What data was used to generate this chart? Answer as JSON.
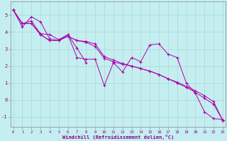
{
  "xlabel": "Windchill (Refroidissement éolien,°C)",
  "background_color": "#c5eef0",
  "grid_color": "#aad8da",
  "line_color": "#aa00aa",
  "spine_color": "#888899",
  "text_color": "#880088",
  "ylim": [
    -1.6,
    5.8
  ],
  "xlim": [
    0,
    23
  ],
  "y_ticks": [
    -1,
    0,
    1,
    2,
    3,
    4,
    5
  ],
  "x_ticks": [
    0,
    1,
    2,
    3,
    4,
    5,
    6,
    7,
    8,
    9,
    10,
    11,
    12,
    13,
    14,
    15,
    16,
    17,
    18,
    19,
    20,
    21,
    22,
    23
  ],
  "series": [
    {
      "x": [
        0,
        1,
        2,
        3,
        4,
        5,
        6,
        7,
        8,
        9,
        10,
        11,
        12,
        13,
        14,
        15,
        16,
        17,
        18,
        19,
        20,
        21,
        22,
        23
      ],
      "y": [
        5.3,
        4.3,
        4.9,
        4.6,
        3.6,
        3.5,
        3.85,
        2.5,
        2.4,
        2.4,
        0.85,
        2.2,
        1.65,
        2.5,
        2.25,
        3.25,
        3.3,
        2.7,
        2.5,
        1.0,
        0.4,
        -0.7,
        -1.1,
        -1.15
      ]
    },
    {
      "x": [
        0,
        1,
        2,
        3,
        4,
        5,
        6,
        7,
        8
      ],
      "y": [
        5.3,
        4.5,
        4.65,
        3.9,
        3.85,
        3.55,
        3.85,
        3.05,
        2.2
      ]
    },
    {
      "x": [
        0,
        1,
        2,
        3,
        4,
        5,
        6,
        7,
        8,
        9,
        10,
        11,
        12,
        13,
        14,
        15,
        16,
        17,
        18,
        19,
        20,
        21,
        22,
        23
      ],
      "y": [
        5.3,
        4.5,
        4.5,
        3.85,
        3.5,
        3.5,
        3.75,
        3.5,
        3.4,
        3.15,
        2.45,
        2.25,
        2.1,
        2.0,
        1.85,
        1.7,
        1.5,
        1.25,
        1.05,
        0.8,
        0.55,
        0.25,
        -0.1,
        -1.2
      ]
    },
    {
      "x": [
        0,
        1,
        2,
        3,
        4,
        5,
        6,
        7,
        8,
        9,
        10,
        11,
        12,
        13,
        14,
        15,
        16,
        17,
        18,
        19,
        20,
        21,
        22,
        23
      ],
      "y": [
        5.3,
        4.5,
        4.5,
        3.85,
        3.5,
        3.5,
        3.75,
        3.5,
        3.45,
        3.3,
        2.55,
        2.35,
        2.15,
        2.0,
        1.85,
        1.7,
        1.5,
        1.25,
        1.0,
        0.75,
        0.45,
        0.1,
        -0.25,
        -1.2
      ]
    }
  ]
}
